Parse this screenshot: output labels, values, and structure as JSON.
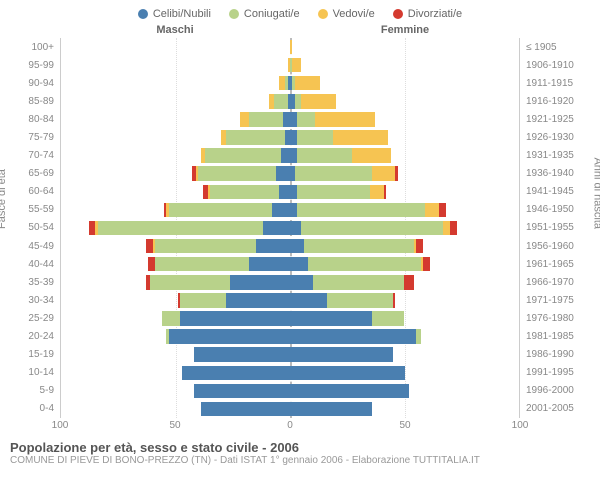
{
  "legend": {
    "items": [
      {
        "label": "Celibi/Nubili",
        "color": "#4a7fb0"
      },
      {
        "label": "Coniugati/e",
        "color": "#b8d28a"
      },
      {
        "label": "Vedovi/e",
        "color": "#f6c452"
      },
      {
        "label": "Divorziati/e",
        "color": "#d43a2f"
      }
    ]
  },
  "headers": {
    "male": "Maschi",
    "female": "Femmine"
  },
  "axis_titles": {
    "left": "Fasce di età",
    "right": "Anni di nascita"
  },
  "xaxis": {
    "max": 100,
    "ticks": [
      100,
      50,
      0,
      50,
      100
    ]
  },
  "footer": {
    "title": "Popolazione per età, sesso e stato civile - 2006",
    "subtitle": "COMUNE DI PIEVE DI BONO-PREZZO (TN) - Dati ISTAT 1° gennaio 2006 - Elaborazione TUTTITALIA.IT"
  },
  "rows": [
    {
      "age": "100+",
      "birth": "≤ 1905",
      "m": [
        0,
        0,
        0,
        0
      ],
      "f": [
        0,
        0,
        1,
        0
      ]
    },
    {
      "age": "95-99",
      "birth": "1906-1910",
      "m": [
        0,
        0,
        1,
        0
      ],
      "f": [
        0,
        1,
        4,
        0
      ]
    },
    {
      "age": "90-94",
      "birth": "1911-1915",
      "m": [
        1,
        1,
        3,
        0
      ],
      "f": [
        1,
        1,
        11,
        0
      ]
    },
    {
      "age": "85-89",
      "birth": "1916-1920",
      "m": [
        1,
        6,
        2,
        0
      ],
      "f": [
        2,
        3,
        15,
        0
      ]
    },
    {
      "age": "80-84",
      "birth": "1921-1925",
      "m": [
        3,
        15,
        4,
        0
      ],
      "f": [
        3,
        8,
        26,
        0
      ]
    },
    {
      "age": "75-79",
      "birth": "1926-1930",
      "m": [
        2,
        26,
        2,
        0
      ],
      "f": [
        3,
        16,
        24,
        0
      ]
    },
    {
      "age": "70-74",
      "birth": "1931-1935",
      "m": [
        4,
        33,
        2,
        0
      ],
      "f": [
        3,
        24,
        17,
        0
      ]
    },
    {
      "age": "65-69",
      "birth": "1936-1940",
      "m": [
        6,
        34,
        1,
        2
      ],
      "f": [
        2,
        34,
        10,
        1
      ]
    },
    {
      "age": "60-64",
      "birth": "1941-1945",
      "m": [
        5,
        30,
        1,
        2
      ],
      "f": [
        3,
        32,
        6,
        1
      ]
    },
    {
      "age": "55-59",
      "birth": "1946-1950",
      "m": [
        8,
        45,
        1,
        1
      ],
      "f": [
        3,
        56,
        6,
        3
      ]
    },
    {
      "age": "50-54",
      "birth": "1951-1955",
      "m": [
        12,
        72,
        1,
        3
      ],
      "f": [
        5,
        62,
        3,
        3
      ]
    },
    {
      "age": "45-49",
      "birth": "1956-1960",
      "m": [
        15,
        44,
        1,
        3
      ],
      "f": [
        6,
        48,
        1,
        3
      ]
    },
    {
      "age": "40-44",
      "birth": "1961-1965",
      "m": [
        18,
        41,
        0,
        3
      ],
      "f": [
        8,
        49,
        1,
        3
      ]
    },
    {
      "age": "35-39",
      "birth": "1966-1970",
      "m": [
        26,
        35,
        0,
        2
      ],
      "f": [
        10,
        40,
        0,
        4
      ]
    },
    {
      "age": "30-34",
      "birth": "1971-1975",
      "m": [
        28,
        20,
        0,
        1
      ],
      "f": [
        16,
        29,
        0,
        1
      ]
    },
    {
      "age": "25-29",
      "birth": "1976-1980",
      "m": [
        48,
        8,
        0,
        0
      ],
      "f": [
        36,
        14,
        0,
        0
      ]
    },
    {
      "age": "20-24",
      "birth": "1981-1985",
      "m": [
        53,
        1,
        0,
        0
      ],
      "f": [
        55,
        2,
        0,
        0
      ]
    },
    {
      "age": "15-19",
      "birth": "1986-1990",
      "m": [
        42,
        0,
        0,
        0
      ],
      "f": [
        45,
        0,
        0,
        0
      ]
    },
    {
      "age": "10-14",
      "birth": "1991-1995",
      "m": [
        47,
        0,
        0,
        0
      ],
      "f": [
        50,
        0,
        0,
        0
      ]
    },
    {
      "age": "5-9",
      "birth": "1996-2000",
      "m": [
        42,
        0,
        0,
        0
      ],
      "f": [
        52,
        0,
        0,
        0
      ]
    },
    {
      "age": "0-4",
      "birth": "2001-2005",
      "m": [
        39,
        0,
        0,
        0
      ],
      "f": [
        36,
        0,
        0,
        0
      ]
    }
  ],
  "colors": [
    "#4a7fb0",
    "#b8d28a",
    "#f6c452",
    "#d43a2f"
  ],
  "background": "#ffffff",
  "grid_color": "#dddddd"
}
